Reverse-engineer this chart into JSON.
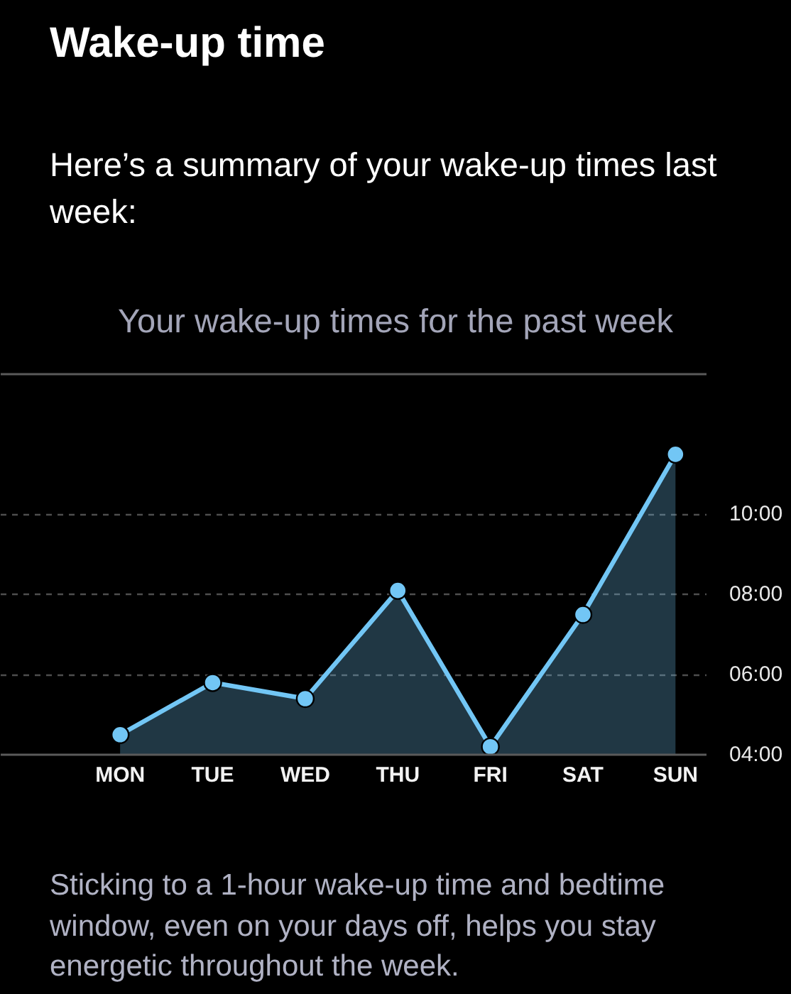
{
  "chart_data": {
    "type": "area",
    "title": "Wake-up time",
    "subtitle": "Here’s a summary of your wake-up times last week:",
    "annotations": [
      "Your wake-up times for the past week",
      "Sticking to a 1-hour wake-up time and bedtime window, even on your days off, helps you stay energetic throughout the week."
    ],
    "categories": [
      "MON",
      "TUE",
      "WED",
      "THU",
      "FRI",
      "SAT",
      "SUN"
    ],
    "series": [
      {
        "color": "#72c6f5",
        "values": [
          4.5,
          5.8,
          5.4,
          8.1,
          4.2,
          7.5,
          11.5
        ]
      }
    ],
    "ylim": [
      4,
      13.5
    ],
    "yticks": [
      {
        "value": 4,
        "label": "04:00"
      },
      {
        "value": 6,
        "label": "06:00"
      },
      {
        "value": 8,
        "label": "08:00"
      },
      {
        "value": 10,
        "label": "10:00"
      }
    ],
    "grid": "y",
    "marker": "circle",
    "line_style": "solid"
  }
}
